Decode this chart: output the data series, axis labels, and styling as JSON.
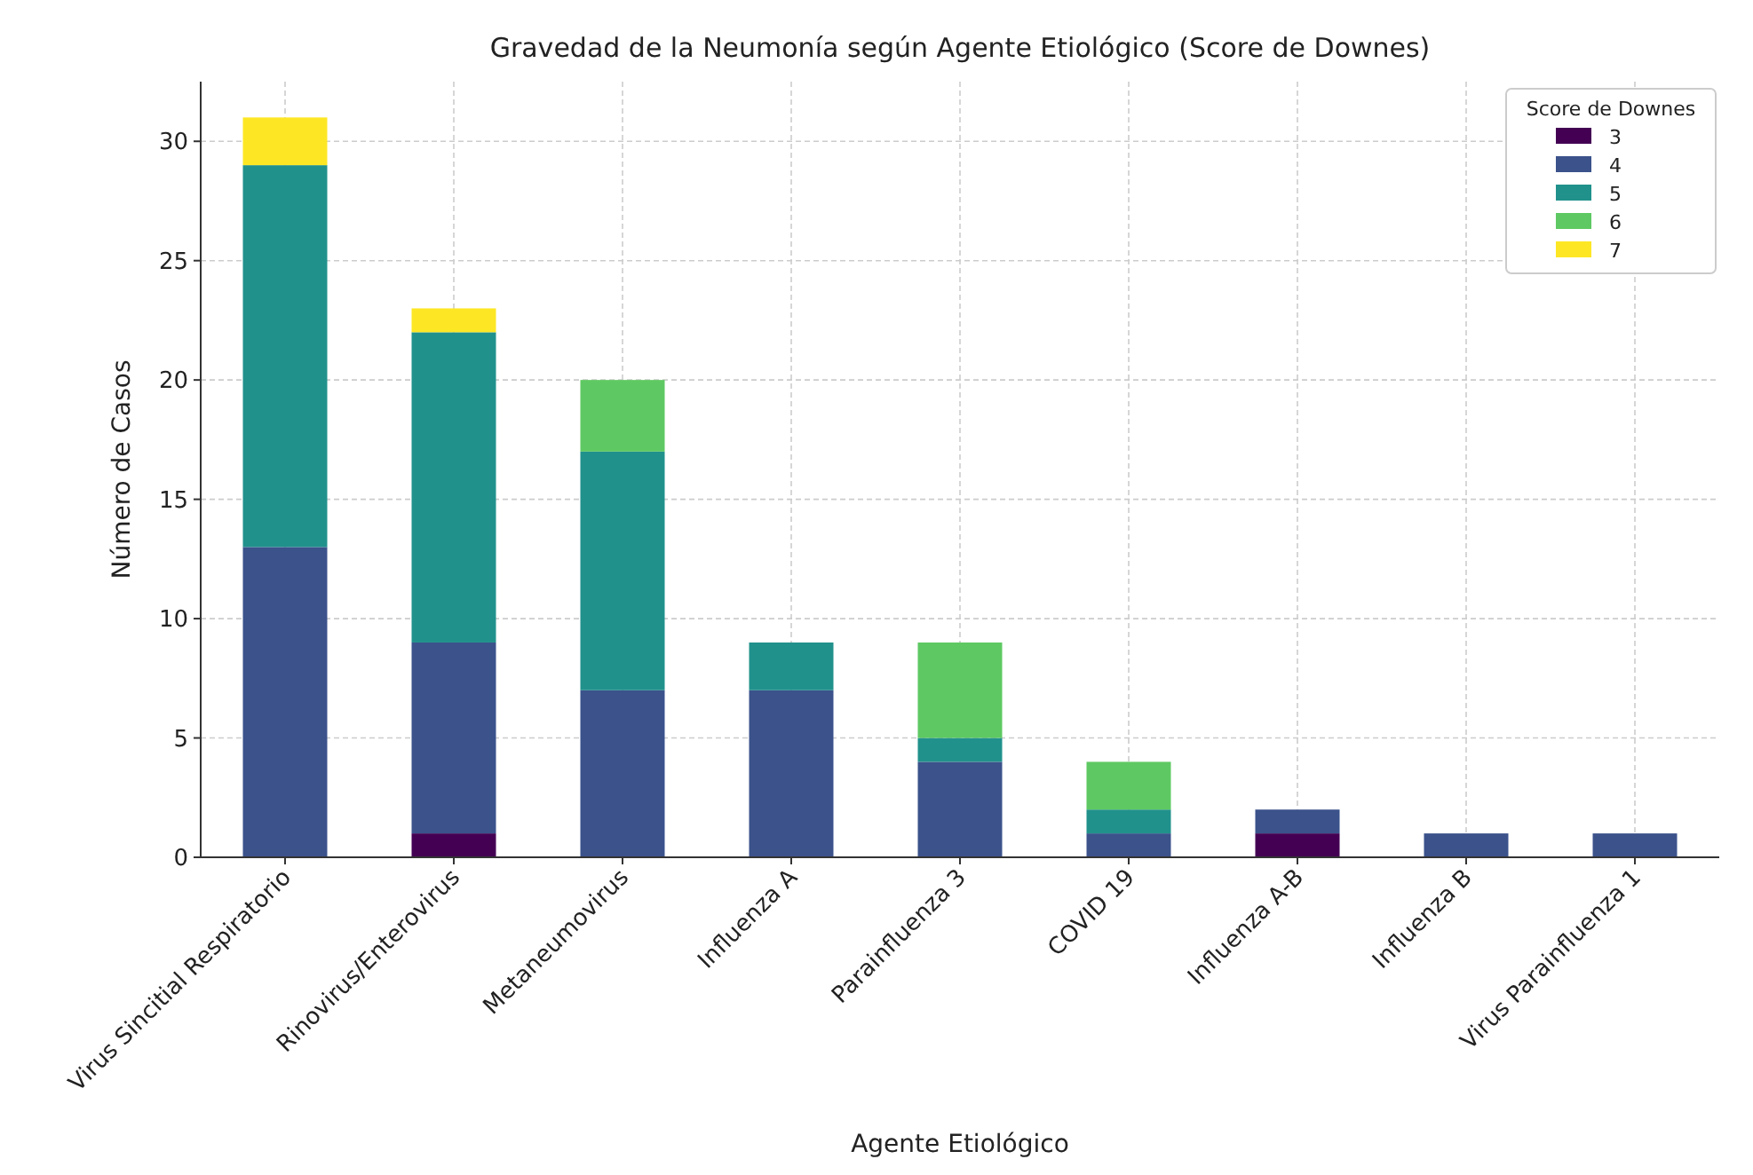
{
  "chart_data": {
    "type": "bar",
    "title": "Gravedad de la Neumonía según Agente Etiológico (Score de Downes)",
    "xlabel": "Agente Etiológico",
    "ylabel": "Número de Casos",
    "legend_title": "Score de Downes",
    "categories": [
      "Virus Sincitial Respiratorio",
      "Rinovirus/Enterovirus",
      "Metaneumovirus",
      "Influenza A",
      "Parainfluenza 3",
      "COVID 19",
      "Influenza A-B",
      "Influenza B",
      "Virus Parainfluenza 1"
    ],
    "stacked": true,
    "ylim": [
      0,
      32.5
    ],
    "yticks": [
      0,
      5,
      10,
      15,
      20,
      25,
      30
    ],
    "grid": true,
    "legend": "top right",
    "series": [
      {
        "name": "3",
        "color": "#440154",
        "values": [
          0,
          1,
          0,
          0,
          0,
          0,
          1,
          0,
          0
        ]
      },
      {
        "name": "4",
        "color": "#3b528b",
        "values": [
          13,
          8,
          7,
          7,
          4,
          1,
          1,
          1,
          1
        ]
      },
      {
        "name": "5",
        "color": "#21918c",
        "values": [
          16,
          13,
          10,
          2,
          1,
          1,
          0,
          0,
          0
        ]
      },
      {
        "name": "6",
        "color": "#5ec962",
        "values": [
          0,
          0,
          3,
          0,
          4,
          2,
          0,
          0,
          0
        ]
      },
      {
        "name": "7",
        "color": "#fde725",
        "values": [
          2,
          1,
          0,
          0,
          0,
          0,
          0,
          0,
          0
        ]
      }
    ]
  }
}
